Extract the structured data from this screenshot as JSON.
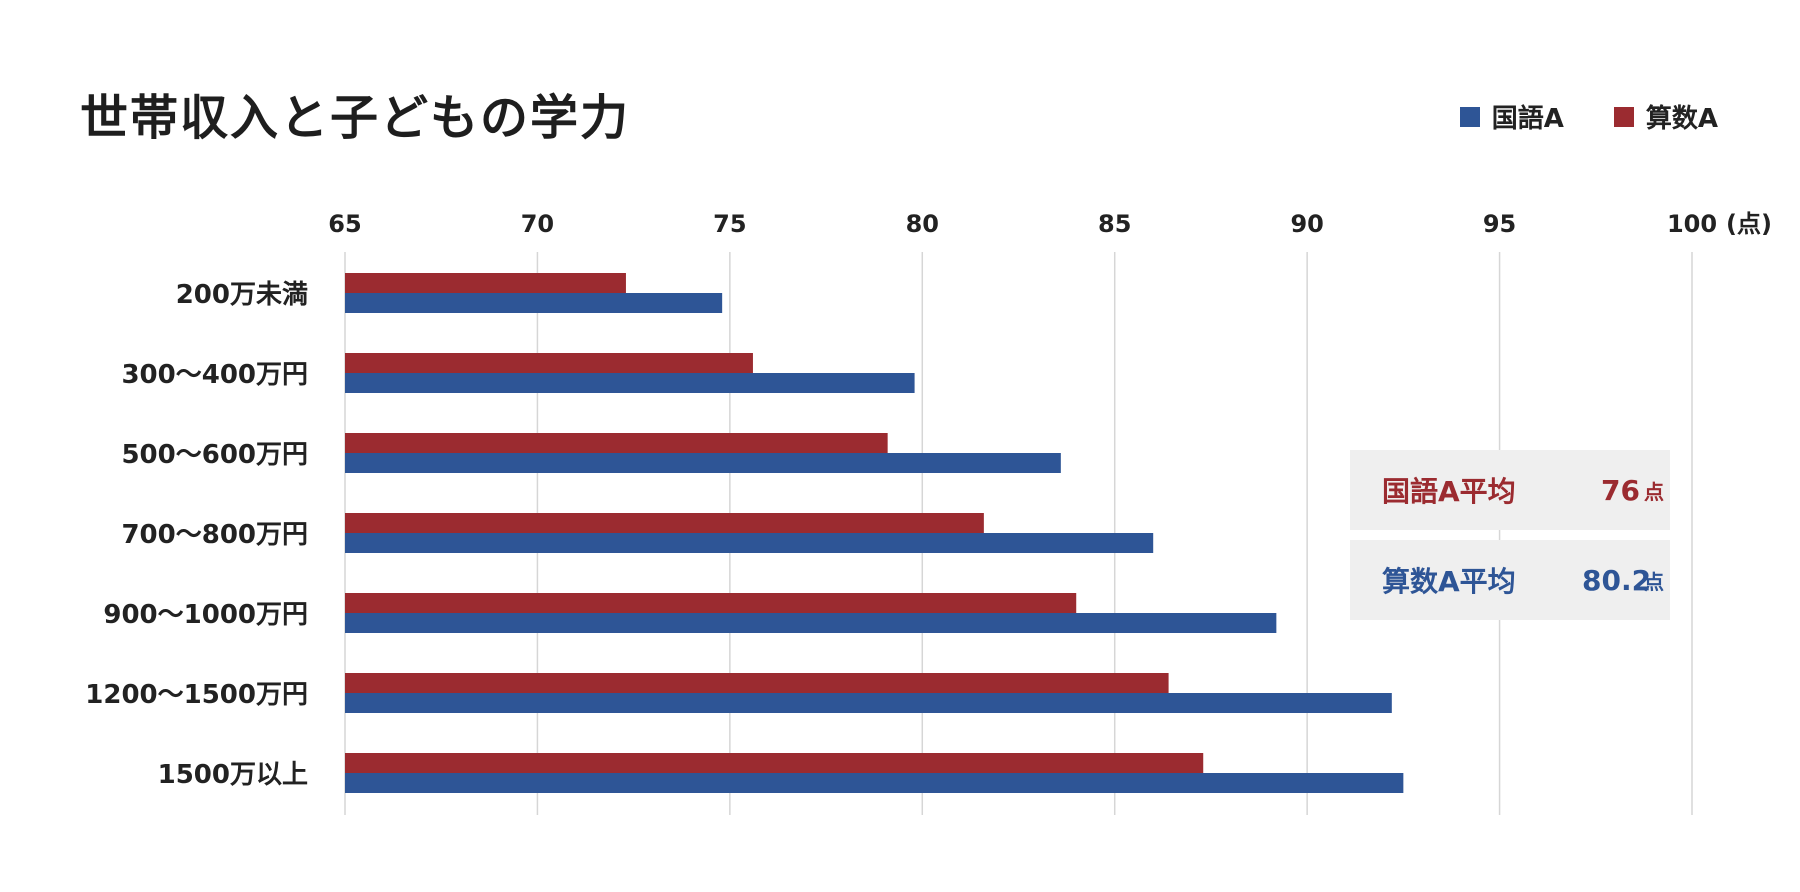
{
  "title": "世帯収入と子どもの学力",
  "legend": [
    {
      "label": "国語A",
      "color": "#2e5596"
    },
    {
      "label": "算数A",
      "color": "#9b2b30"
    }
  ],
  "averages": [
    {
      "label": "国語A平均",
      "value": "76",
      "unit": "点",
      "color": "#9b2b30"
    },
    {
      "label": "算数A平均",
      "value": "80.2",
      "unit": "点",
      "color": "#2e5596"
    }
  ],
  "chart_data": {
    "type": "bar",
    "orientation": "horizontal",
    "categories": [
      "200万未満",
      "300〜400万円",
      "500〜600万円",
      "700〜800万円",
      "900〜1000万円",
      "1200〜1500万円",
      "1500万以上"
    ],
    "series": [
      {
        "name": "算数A",
        "color": "#9b2b30",
        "values": [
          72.3,
          75.6,
          79.1,
          81.6,
          84.0,
          86.4,
          87.3
        ]
      },
      {
        "name": "国語A",
        "color": "#2e5596",
        "values": [
          74.8,
          79.8,
          83.6,
          86.0,
          89.2,
          92.2,
          92.5
        ]
      }
    ],
    "title": "世帯収入と子どもの学力",
    "xlim": [
      65,
      100
    ],
    "xticks": [
      "65",
      "70",
      "75",
      "80",
      "85",
      "90",
      "95",
      "100"
    ],
    "x_unit_label": "(点)",
    "grid": true,
    "legend_position": "top-right"
  }
}
